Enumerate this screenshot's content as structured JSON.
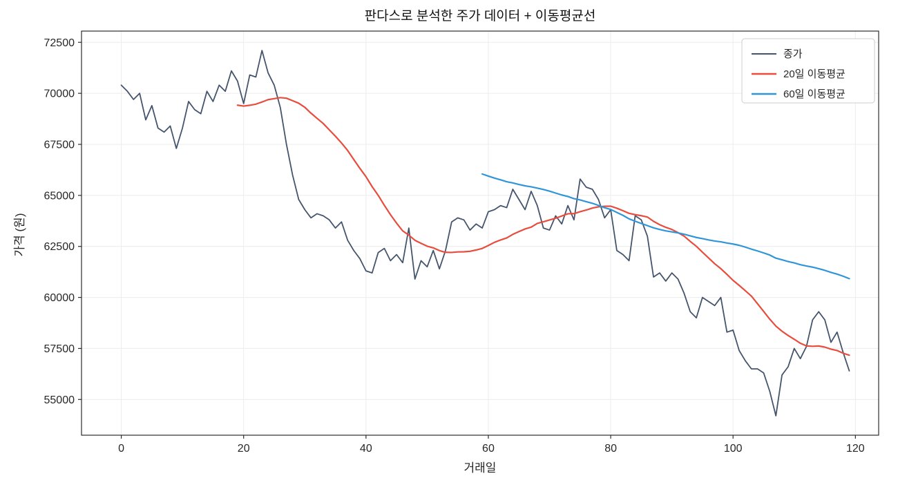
{
  "title": "판다스로 분석한 주가 데이터 + 이동평균선",
  "xlabel": "거래일",
  "ylabel": "가격 (원)",
  "legend": {
    "items": [
      {
        "label": "종가",
        "color": "#44546c"
      },
      {
        "label": "20일 이동평균",
        "color": "#e74c3c"
      },
      {
        "label": "60일 이동평균",
        "color": "#2f95d8"
      }
    ],
    "position": "upper right"
  },
  "colors": {
    "close": "#44546c",
    "ma20": "#e74c3c",
    "ma60": "#2f95d8",
    "grid": "#ececec",
    "spine": "#2b2b2b",
    "tick_label": "#262626",
    "legend_border": "#cccccc"
  },
  "chart_data": {
    "type": "line",
    "title": "판다스로 분석한 주가 데이터 + 이동평균선",
    "xlabel": "거래일",
    "ylabel": "가격 (원)",
    "xlim": [
      -6.5,
      123.8
    ],
    "ylim": [
      53250,
      73050
    ],
    "xticks": [
      0,
      20,
      40,
      60,
      80,
      100,
      120
    ],
    "yticks": [
      55000,
      57500,
      60000,
      62500,
      65000,
      67500,
      70000,
      72500
    ],
    "grid": true,
    "legend_position": "upper right",
    "series": [
      {
        "name": "종가",
        "type": "raw",
        "x_start": 0,
        "color": "#44546c",
        "line_width": 1.8,
        "values": [
          70400,
          70100,
          69700,
          70000,
          68700,
          69400,
          68300,
          68100,
          68400,
          67300,
          68300,
          69600,
          69200,
          69000,
          70100,
          69600,
          70400,
          70100,
          71100,
          70600,
          69500,
          70900,
          70800,
          72100,
          71000,
          70400,
          69300,
          67500,
          66000,
          64800,
          64300,
          63900,
          64100,
          64000,
          63800,
          63400,
          63700,
          62800,
          62300,
          61900,
          61300,
          61200,
          62200,
          62400,
          61800,
          62100,
          61700,
          63400,
          60900,
          61800,
          61500,
          62300,
          61400,
          62300,
          63700,
          63900,
          63800,
          63300,
          63600,
          63400,
          64200,
          64300,
          64500,
          64400,
          65300,
          64800,
          64300,
          65200,
          64500,
          63400,
          63300,
          64000,
          63600,
          64500,
          63800,
          65800,
          65400,
          65300,
          64800,
          63900,
          64300,
          62300,
          62100,
          61800,
          64000,
          63800,
          63000,
          61000,
          61200,
          60800,
          61200,
          60900,
          60200,
          59300,
          59000,
          60000,
          59800,
          59600,
          60000,
          58300,
          58400,
          57400,
          56900,
          56500,
          56500,
          56300,
          55400,
          54200,
          56200,
          56600,
          57500,
          57000,
          57600,
          58900,
          59300,
          58900,
          57800,
          58300,
          57300,
          56400
        ]
      },
      {
        "name": "20일 이동평균",
        "type": "rolling_mean",
        "window": 20,
        "source": "종가",
        "color": "#e74c3c",
        "line_width": 2.2
      },
      {
        "name": "60일 이동평균",
        "type": "rolling_mean",
        "window": 60,
        "source": "종가",
        "color": "#2f95d8",
        "line_width": 2.2
      }
    ]
  }
}
